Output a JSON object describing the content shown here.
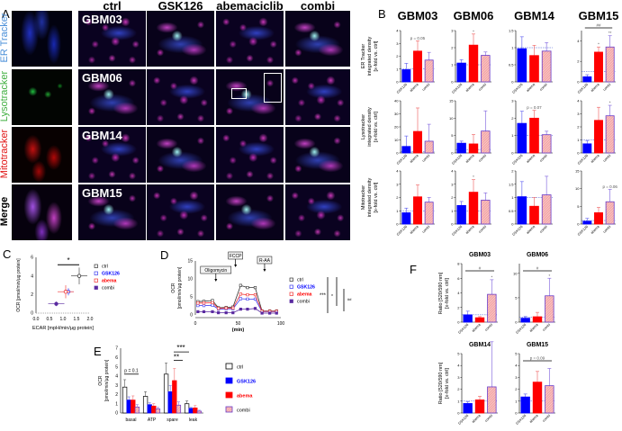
{
  "panel_labels": {
    "A": "A",
    "B": "B",
    "C": "C",
    "D": "D",
    "E": "E",
    "F": "F"
  },
  "panel_a": {
    "columns": [
      "ctrl",
      "GSK126",
      "abemaciclib",
      "combi"
    ],
    "rows": [
      {
        "label": "ER Tracker",
        "color": "#4a8fd8"
      },
      {
        "label": "Lysotracker",
        "color": "#3fae3f"
      },
      {
        "label": "Mitotracker",
        "color": "#e01010"
      },
      {
        "label": "Merge",
        "color": "#000000"
      }
    ],
    "cell_lines": [
      "GBM03",
      "GBM06",
      "GBM14",
      "GBM15"
    ]
  },
  "colors": {
    "ctrl": "#ffffff",
    "GSK126": "#0000ff",
    "abema": "#ff0000",
    "combi": "#f4a6a6",
    "combi_border": "#6a3cc8",
    "reference_line": "#3a50d0"
  },
  "chart_data": [
    {
      "id": "B",
      "type": "bar",
      "cell_lines": [
        "GBM03",
        "GBM06",
        "GBM14",
        "GBM15"
      ],
      "categories": [
        "GSK126",
        "abema",
        "combi"
      ],
      "rows": [
        {
          "ylabel": [
            "ER Tracker",
            "integrated density",
            "[x-fold vs. ctrl]"
          ],
          "charts": [
            {
              "values": [
                0.95,
                2.4,
                1.7
              ],
              "errors": [
                0.5,
                0.8,
                0.6
              ],
              "ylim": [
                0,
                4
              ],
              "ticks": [
                0,
                1,
                2,
                3,
                4
              ],
              "annotations": [
                "",
                "p = 0.05",
                ""
              ]
            },
            {
              "values": [
                1.1,
                2.15,
                1.55
              ],
              "errors": [
                0.2,
                0.65,
                0.2
              ],
              "ylim": [
                0,
                3
              ],
              "ticks": [
                0,
                1,
                2,
                3
              ],
              "annotations": [
                "",
                "*",
                ""
              ]
            },
            {
              "values": [
                0.97,
                0.77,
                0.9
              ],
              "errors": [
                0.35,
                0.3,
                0.25
              ],
              "ylim": [
                0,
                1.5
              ],
              "ticks": [
                0,
                0.5,
                1.0,
                1.5
              ],
              "annotations": [
                "",
                "",
                ""
              ]
            },
            {
              "values": [
                0.5,
                2.9,
                3.4
              ],
              "errors": [
                0.2,
                0.5,
                1.1
              ],
              "ylim": [
                0,
                5
              ],
              "ticks": [
                0,
                2,
                4
              ],
              "annotations": [
                "",
                "*",
                "**"
              ],
              "bracket": "##"
            }
          ]
        },
        {
          "ylabel": [
            "Lysotracker",
            "integrated density",
            "[x-fold vs. ctrl]"
          ],
          "charts": [
            {
              "values": [
                5,
                16.5,
                9
              ],
              "errors": [
                8,
                18,
                13
              ],
              "ylim": [
                0,
                40
              ],
              "ticks": [
                0,
                10,
                20,
                30,
                40
              ],
              "annotations": [
                "",
                "",
                ""
              ]
            },
            {
              "values": [
                2.8,
                2.6,
                6.3
              ],
              "errors": [
                0.6,
                2.7,
                5.8
              ],
              "ylim": [
                0,
                15
              ],
              "ticks": [
                0,
                5,
                10,
                15
              ],
              "annotations": [
                "",
                "",
                ""
              ]
            },
            {
              "values": [
                1.7,
                2.0,
                1.05
              ],
              "errors": [
                0.7,
                0.45,
                0.2
              ],
              "ylim": [
                0,
                3
              ],
              "ticks": [
                0,
                1,
                2,
                3
              ],
              "annotations": [
                "",
                "p = 0.07",
                ""
              ]
            },
            {
              "values": [
                0.7,
                2.5,
                2.85
              ],
              "errors": [
                0.25,
                1.0,
                0.8
              ],
              "ylim": [
                0,
                4
              ],
              "ticks": [
                0,
                1,
                2,
                3,
                4
              ],
              "annotations": [
                "",
                "",
                "*"
              ]
            }
          ]
        },
        {
          "ylabel": [
            "Mitotracker",
            "integrated density",
            "[x-fold vs. ctrl]"
          ],
          "charts": [
            {
              "values": [
                0.85,
                2.05,
                1.65
              ],
              "errors": [
                0.35,
                0.9,
                0.35
              ],
              "ylim": [
                0,
                4
              ],
              "ticks": [
                0,
                1,
                2,
                3,
                4
              ],
              "annotations": [
                "",
                "",
                ""
              ]
            },
            {
              "values": [
                1.4,
                2.4,
                1.8
              ],
              "errors": [
                0.3,
                0.95,
                0.55
              ],
              "ylim": [
                0,
                4
              ],
              "ticks": [
                0,
                1,
                2,
                3,
                4
              ],
              "annotations": [
                "",
                "*",
                ""
              ]
            },
            {
              "values": [
                1.03,
                0.67,
                1.1
              ],
              "errors": [
                0.57,
                0.33,
                0.7
              ],
              "ylim": [
                0,
                2
              ],
              "ticks": [
                0,
                0.5,
                1.0,
                1.5,
                2.0
              ],
              "annotations": [
                "",
                "",
                ""
              ]
            },
            {
              "values": [
                0.8,
                3.2,
                6.3
              ],
              "errors": [
                0.8,
                1.5,
                3.5
              ],
              "ylim": [
                0,
                15
              ],
              "ticks": [
                0,
                5,
                10,
                15
              ],
              "annotations": [
                "",
                "",
                "p = 0.06"
              ]
            }
          ]
        }
      ]
    },
    {
      "id": "C",
      "type": "scatter",
      "xlabel": "ECAR [mpH/min/µg protein]",
      "ylabel": "OCR [pmol/min/µg protein]",
      "xlim": [
        0,
        2
      ],
      "ylim": [
        0,
        6
      ],
      "xticks": [
        "0.0",
        "0.5",
        "1.0",
        "1.5",
        "2.0"
      ],
      "yticks": [
        0,
        2,
        4,
        6
      ],
      "significance": "*",
      "series": [
        {
          "name": "ctrl",
          "x": 1.6,
          "y": 4.0,
          "xerr": 0.3,
          "yerr": 0.9
        },
        {
          "name": "GSK126",
          "x": 1.2,
          "y": 2.3,
          "xerr": 0.2,
          "yerr": 0.4
        },
        {
          "name": "abema",
          "x": 1.1,
          "y": 2.3,
          "xerr": 0.3,
          "yerr": 0.7
        },
        {
          "name": "combi",
          "x": 0.75,
          "y": 1.0,
          "xerr": 0.3,
          "yerr": 0.25
        }
      ]
    },
    {
      "id": "D",
      "type": "line",
      "xlabel": "(min)",
      "ylabel": [
        "OCR",
        "[pmol/min/µg protein]"
      ],
      "xlim": [
        0,
        100
      ],
      "ylim": [
        0,
        15
      ],
      "xticks": [
        0,
        50,
        100
      ],
      "yticks": [
        0,
        5,
        10,
        15
      ],
      "injections": [
        {
          "label": "Oligomycin",
          "x": 24
        },
        {
          "label": "FCCP",
          "x": 47
        },
        {
          "label": "R-AA",
          "x": 81
        }
      ],
      "x": [
        3,
        10,
        20,
        27,
        36,
        44,
        53,
        61,
        70,
        78,
        87,
        95
      ],
      "series": [
        {
          "name": "ctrl",
          "values": [
            3.7,
            3.8,
            4.0,
            2.0,
            2.1,
            2.2,
            8.2,
            7.6,
            7.6,
            1.1,
            1.1,
            1.1
          ]
        },
        {
          "name": "GSK126",
          "values": [
            2.6,
            2.6,
            2.7,
            1.6,
            1.7,
            1.7,
            4.5,
            4.4,
            4.4,
            0.9,
            0.9,
            0.9
          ]
        },
        {
          "name": "abema",
          "values": [
            3.3,
            3.3,
            3.4,
            1.8,
            1.9,
            1.9,
            5.8,
            5.6,
            5.6,
            1.0,
            1.0,
            1.0
          ]
        },
        {
          "name": "combi",
          "values": [
            0.9,
            0.9,
            0.9,
            0.6,
            0.6,
            0.6,
            1.6,
            1.6,
            1.8,
            0.5,
            0.5,
            0.5
          ]
        }
      ],
      "significance": [
        "***",
        "*",
        "##"
      ]
    },
    {
      "id": "E",
      "type": "bar",
      "ylabel": [
        "OCR",
        "[pmol/min/µg protein]"
      ],
      "ylim": [
        0,
        7
      ],
      "yticks": [
        0,
        1,
        2,
        3,
        4,
        5,
        6,
        7
      ],
      "categories": [
        "basal",
        "ATP",
        "spare",
        "leak"
      ],
      "series": [
        {
          "name": "ctrl",
          "values": [
            2.8,
            1.8,
            4.2,
            1.0
          ],
          "errors": [
            0.8,
            0.5,
            1.2,
            0.3
          ]
        },
        {
          "name": "GSK126",
          "values": [
            1.4,
            0.9,
            2.3,
            0.5
          ],
          "errors": [
            0.35,
            0.2,
            0.65,
            0.1
          ]
        },
        {
          "name": "abema",
          "values": [
            1.4,
            0.75,
            3.5,
            0.55
          ],
          "errors": [
            0.45,
            0.25,
            1.3,
            0.25
          ]
        },
        {
          "name": "combi",
          "values": [
            0.65,
            0.45,
            0.85,
            0.2
          ],
          "errors": [
            0.25,
            0.15,
            0.35,
            0.1
          ]
        }
      ],
      "annotations": [
        "p = 0.1",
        "**",
        "***"
      ]
    },
    {
      "id": "F",
      "type": "bar",
      "ylabel": [
        "Ratio [520/590 nm]",
        "[x-fold vs. ctrl]"
      ],
      "categories": [
        "GSK126",
        "abema",
        "combi"
      ],
      "charts": [
        {
          "title": "GBM03",
          "values": [
            1.0,
            0.6,
            3.8
          ],
          "errors": [
            0.5,
            0.15,
            2.0
          ],
          "ylim": [
            0,
            8
          ],
          "ticks": [
            0,
            2,
            4,
            6,
            8
          ],
          "annotations": [
            "",
            "",
            "*"
          ],
          "bracket": "#"
        },
        {
          "title": "GBM06",
          "values": [
            0.8,
            1.1,
            5.4
          ],
          "errors": [
            0.35,
            0.9,
            3.6
          ],
          "ylim": [
            0,
            12
          ],
          "ticks": [
            0,
            5,
            10
          ],
          "annotations": [
            "",
            "",
            "*"
          ],
          "bracket": "#"
        },
        {
          "title": "GBM14",
          "values": [
            0.8,
            1.1,
            2.2
          ],
          "errors": [
            0.15,
            0.3,
            3.8
          ],
          "ylim": [
            0,
            5
          ],
          "ticks": [
            0,
            1,
            2,
            3,
            4,
            5
          ],
          "annotations": [
            "",
            "",
            ""
          ]
        },
        {
          "title": "GBM15",
          "values": [
            1.35,
            2.6,
            2.3
          ],
          "errors": [
            0.25,
            0.9,
            1.45
          ],
          "ylim": [
            0,
            5
          ],
          "ticks": [
            0,
            1,
            2,
            3,
            4,
            5
          ],
          "annotations": [
            "",
            "",
            ""
          ],
          "bracket": "p = 0.09"
        }
      ]
    }
  ]
}
